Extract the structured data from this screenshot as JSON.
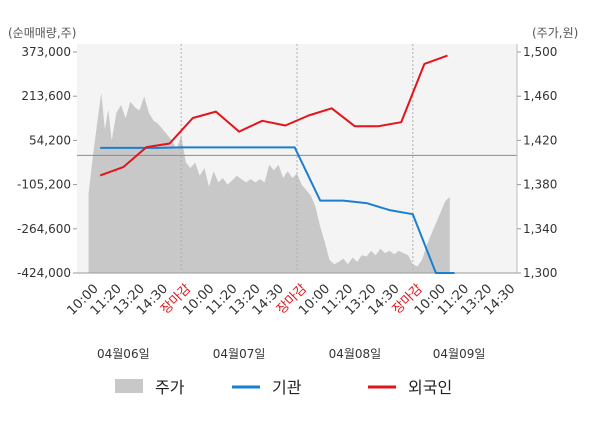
{
  "chart_data": {
    "type": "line",
    "left_axis_unit": "(순매매량,주)",
    "right_axis_unit": "(주가,원)",
    "left_ticks": [
      {
        "value": 373000,
        "label": "373,000"
      },
      {
        "value": 213600,
        "label": "213,600"
      },
      {
        "value": 54200,
        "label": "54,200"
      },
      {
        "value": -105200,
        "label": "-105,200"
      },
      {
        "value": -264600,
        "label": "-264,600"
      },
      {
        "value": -424000,
        "label": "-424,000"
      }
    ],
    "right_ticks": [
      {
        "value": 1500,
        "label": "1,500"
      },
      {
        "value": 1460,
        "label": "1,460"
      },
      {
        "value": 1420,
        "label": "1,420"
      },
      {
        "value": 1380,
        "label": "1,380"
      },
      {
        "value": 1340,
        "label": "1,340"
      },
      {
        "value": 1300,
        "label": "1,300"
      }
    ],
    "left_range": [
      -424000,
      373000
    ],
    "right_range": [
      1300,
      1500
    ],
    "x_ticks": [
      {
        "label": "10:00",
        "close": false
      },
      {
        "label": "11:20",
        "close": false
      },
      {
        "label": "13:20",
        "close": false
      },
      {
        "label": "14:30",
        "close": false
      },
      {
        "label": "장마감",
        "close": true
      },
      {
        "label": "10:00",
        "close": false
      },
      {
        "label": "11:20",
        "close": false
      },
      {
        "label": "13:20",
        "close": false
      },
      {
        "label": "14:30",
        "close": false
      },
      {
        "label": "장마감",
        "close": true
      },
      {
        "label": "10:00",
        "close": false
      },
      {
        "label": "11:20",
        "close": false
      },
      {
        "label": "13:20",
        "close": false
      },
      {
        "label": "14:30",
        "close": false
      },
      {
        "label": "장마감",
        "close": true
      },
      {
        "label": "10:00",
        "close": false
      },
      {
        "label": "11:20",
        "close": false
      },
      {
        "label": "13:20",
        "close": false
      },
      {
        "label": "14:30",
        "close": false
      }
    ],
    "dates": [
      "04월06일",
      "04월07일",
      "04월08일",
      "04월09일"
    ],
    "legend": [
      {
        "label": "주가",
        "color": "#c8c8c8",
        "kind": "area"
      },
      {
        "label": "기관",
        "color": "#1a7fd1",
        "kind": "line"
      },
      {
        "label": "외국인",
        "color": "#e3141b",
        "kind": "line"
      }
    ],
    "series": [
      {
        "name": "주가",
        "axis": "right",
        "color": "#c8c8c8",
        "points": [
          [
            0,
            1372
          ],
          [
            0.2,
            1408
          ],
          [
            0.4,
            1440
          ],
          [
            0.55,
            1463
          ],
          [
            0.7,
            1430
          ],
          [
            0.85,
            1448
          ],
          [
            1.0,
            1420
          ],
          [
            1.2,
            1445
          ],
          [
            1.4,
            1452
          ],
          [
            1.6,
            1440
          ],
          [
            1.8,
            1455
          ],
          [
            2.0,
            1450
          ],
          [
            2.2,
            1447
          ],
          [
            2.4,
            1460
          ],
          [
            2.6,
            1445
          ],
          [
            2.8,
            1438
          ],
          [
            3.0,
            1435
          ],
          [
            3.2,
            1430
          ],
          [
            3.4,
            1425
          ],
          [
            3.6,
            1420
          ],
          [
            3.8,
            1412
          ],
          [
            4.0,
            1425
          ],
          [
            4.2,
            1400
          ],
          [
            4.4,
            1395
          ],
          [
            4.6,
            1400
          ],
          [
            4.8,
            1388
          ],
          [
            5.0,
            1395
          ],
          [
            5.2,
            1378
          ],
          [
            5.4,
            1392
          ],
          [
            5.6,
            1382
          ],
          [
            5.8,
            1386
          ],
          [
            6.0,
            1380
          ],
          [
            6.2,
            1384
          ],
          [
            6.4,
            1388
          ],
          [
            6.6,
            1385
          ],
          [
            6.8,
            1382
          ],
          [
            7.0,
            1385
          ],
          [
            7.2,
            1382
          ],
          [
            7.4,
            1385
          ],
          [
            7.6,
            1382
          ],
          [
            7.8,
            1398
          ],
          [
            8.0,
            1393
          ],
          [
            8.2,
            1398
          ],
          [
            8.4,
            1386
          ],
          [
            8.6,
            1392
          ],
          [
            8.8,
            1386
          ],
          [
            9.0,
            1390
          ],
          [
            9.2,
            1380
          ],
          [
            9.4,
            1375
          ],
          [
            9.6,
            1370
          ],
          [
            9.8,
            1360
          ],
          [
            10.0,
            1342
          ],
          [
            10.2,
            1328
          ],
          [
            10.4,
            1312
          ],
          [
            10.6,
            1308
          ],
          [
            10.8,
            1310
          ],
          [
            11.0,
            1313
          ],
          [
            11.2,
            1308
          ],
          [
            11.4,
            1314
          ],
          [
            11.6,
            1310
          ],
          [
            11.8,
            1316
          ],
          [
            12.0,
            1315
          ],
          [
            12.2,
            1320
          ],
          [
            12.4,
            1316
          ],
          [
            12.6,
            1322
          ],
          [
            12.8,
            1318
          ],
          [
            13.0,
            1320
          ],
          [
            13.2,
            1317
          ],
          [
            13.4,
            1320
          ],
          [
            13.6,
            1318
          ],
          [
            13.8,
            1316
          ],
          [
            14.0,
            1308
          ],
          [
            14.2,
            1306
          ],
          [
            14.4,
            1312
          ],
          [
            14.6,
            1325
          ],
          [
            14.8,
            1335
          ],
          [
            15.0,
            1345
          ],
          [
            15.2,
            1355
          ],
          [
            15.4,
            1365
          ],
          [
            15.6,
            1369
          ]
        ]
      },
      {
        "name": "기관",
        "axis": "left",
        "color": "#1a7fd1",
        "points": [
          [
            0.5,
            27000
          ],
          [
            1.0,
            27000
          ],
          [
            2.0,
            27000
          ],
          [
            3.0,
            27000
          ],
          [
            4.0,
            29000
          ],
          [
            5.0,
            29000
          ],
          [
            6.0,
            29000
          ],
          [
            7.0,
            29000
          ],
          [
            8.0,
            29000
          ],
          [
            8.9,
            29000
          ],
          [
            10.0,
            -163000
          ],
          [
            11.0,
            -163000
          ],
          [
            12.0,
            -172000
          ],
          [
            13.0,
            -197000
          ],
          [
            14.0,
            -212000
          ],
          [
            15.0,
            -424000
          ],
          [
            15.8,
            -424000
          ]
        ]
      },
      {
        "name": "외국인",
        "axis": "left",
        "color": "#e3141b",
        "points": [
          [
            0.5,
            -72000
          ],
          [
            1.5,
            -42000
          ],
          [
            2.5,
            30000
          ],
          [
            3.5,
            43000
          ],
          [
            4.5,
            135000
          ],
          [
            5.5,
            158000
          ],
          [
            6.5,
            86000
          ],
          [
            7.5,
            125000
          ],
          [
            8.5,
            108000
          ],
          [
            9.5,
            144000
          ],
          [
            10.5,
            170000
          ],
          [
            11.5,
            105000
          ],
          [
            12.5,
            105000
          ],
          [
            13.5,
            120000
          ],
          [
            14.5,
            330000
          ],
          [
            15.5,
            360000
          ]
        ]
      }
    ]
  }
}
